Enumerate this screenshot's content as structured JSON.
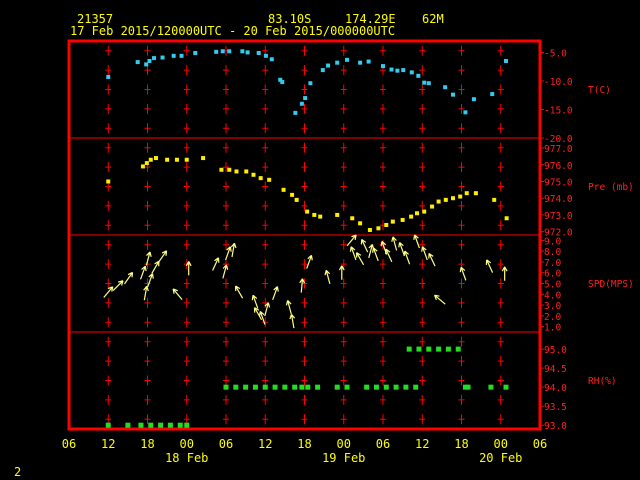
{
  "header": {
    "station": "21357",
    "latitude": "83.10S",
    "longitude": "174.29E",
    "elevation": "62M",
    "period": "17 Feb 2015/120000UTC - 20 Feb 2015/000000UTC"
  },
  "footer": {
    "page_number": "2"
  },
  "colors": {
    "frame": "#ff0000",
    "axis_text": "#ffff00",
    "panel_text": "#ff2020",
    "temp": "#33ccee",
    "pres": "#ffee00",
    "wind": "#ffff88",
    "rh": "#22dd22",
    "header_text": "#ffff00"
  },
  "chart_data": {
    "type": "scatter",
    "x_axis": {
      "unit": "hours from 17 Feb 06 UTC",
      "range": [
        0,
        72
      ],
      "tick_labels": [
        "06",
        "12",
        "18",
        "00",
        "06",
        "12",
        "18",
        "00",
        "06",
        "12",
        "18",
        "00",
        "06"
      ],
      "date_labels": [
        {
          "label": "18 Feb",
          "at": 18
        },
        {
          "label": "19 Feb",
          "at": 42
        },
        {
          "label": "20 Feb",
          "at": 66
        }
      ],
      "grid_hours": [
        6,
        12,
        18,
        24,
        30,
        36,
        42,
        48,
        54,
        60,
        66
      ]
    },
    "panels": [
      {
        "name": "temperature",
        "label": "T(C)",
        "ylim": [
          -20,
          -3
        ],
        "tick_labels": [
          "-5.0",
          "-10.0",
          "-15.0",
          "-20.0"
        ],
        "ticks": [
          -5,
          -10,
          -15,
          -20
        ],
        "series": [
          {
            "x": 6.0,
            "y": -9.3
          },
          {
            "x": 10.5,
            "y": -6.7
          },
          {
            "x": 11.8,
            "y": -7.1
          },
          {
            "x": 12.3,
            "y": -6.5
          },
          {
            "x": 13.0,
            "y": -6.0
          },
          {
            "x": 14.3,
            "y": -5.9
          },
          {
            "x": 16.0,
            "y": -5.6
          },
          {
            "x": 17.2,
            "y": -5.6
          },
          {
            "x": 19.3,
            "y": -5.1
          },
          {
            "x": 22.5,
            "y": -4.9
          },
          {
            "x": 23.5,
            "y": -4.8
          },
          {
            "x": 24.5,
            "y": -4.8
          },
          {
            "x": 26.5,
            "y": -4.8
          },
          {
            "x": 27.3,
            "y": -5.0
          },
          {
            "x": 29.0,
            "y": -5.1
          },
          {
            "x": 30.1,
            "y": -5.6
          },
          {
            "x": 31.0,
            "y": -6.2
          },
          {
            "x": 32.3,
            "y": -9.8
          },
          {
            "x": 32.6,
            "y": -10.2
          },
          {
            "x": 34.6,
            "y": -15.6
          },
          {
            "x": 35.6,
            "y": -14.0
          },
          {
            "x": 36.1,
            "y": -13.0
          },
          {
            "x": 36.9,
            "y": -10.4
          },
          {
            "x": 38.8,
            "y": -8.1
          },
          {
            "x": 39.6,
            "y": -7.3
          },
          {
            "x": 41.0,
            "y": -6.8
          },
          {
            "x": 42.5,
            "y": -6.3
          },
          {
            "x": 44.5,
            "y": -6.8
          },
          {
            "x": 45.8,
            "y": -6.6
          },
          {
            "x": 48.0,
            "y": -7.4
          },
          {
            "x": 49.3,
            "y": -8.0
          },
          {
            "x": 50.2,
            "y": -8.2
          },
          {
            "x": 51.1,
            "y": -8.1
          },
          {
            "x": 52.4,
            "y": -8.5
          },
          {
            "x": 53.4,
            "y": -9.1
          },
          {
            "x": 54.3,
            "y": -10.3
          },
          {
            "x": 55.0,
            "y": -10.4
          },
          {
            "x": 57.5,
            "y": -11.1
          },
          {
            "x": 58.7,
            "y": -12.4
          },
          {
            "x": 60.6,
            "y": -15.5
          },
          {
            "x": 61.9,
            "y": -13.2
          },
          {
            "x": 64.7,
            "y": -12.3
          },
          {
            "x": 66.8,
            "y": -6.5
          }
        ]
      },
      {
        "name": "pressure",
        "label": "Pre (mb)",
        "ylim": [
          971.8,
          977.6
        ],
        "tick_labels": [
          "977.0",
          "976.0",
          "975.0",
          "974.0",
          "973.0",
          "972.0"
        ],
        "ticks": [
          977,
          976,
          975,
          974,
          973,
          972
        ],
        "series": [
          {
            "x": 6.0,
            "y": 975.0
          },
          {
            "x": 11.3,
            "y": 975.9
          },
          {
            "x": 11.9,
            "y": 976.1
          },
          {
            "x": 12.5,
            "y": 976.3
          },
          {
            "x": 13.3,
            "y": 976.4
          },
          {
            "x": 15.0,
            "y": 976.3
          },
          {
            "x": 16.5,
            "y": 976.3
          },
          {
            "x": 18.0,
            "y": 976.3
          },
          {
            "x": 20.5,
            "y": 976.4
          },
          {
            "x": 23.3,
            "y": 975.7
          },
          {
            "x": 24.5,
            "y": 975.7
          },
          {
            "x": 25.6,
            "y": 975.6
          },
          {
            "x": 27.1,
            "y": 975.6
          },
          {
            "x": 28.2,
            "y": 975.4
          },
          {
            "x": 29.3,
            "y": 975.2
          },
          {
            "x": 30.6,
            "y": 975.1
          },
          {
            "x": 32.8,
            "y": 974.5
          },
          {
            "x": 34.1,
            "y": 974.2
          },
          {
            "x": 34.8,
            "y": 973.9
          },
          {
            "x": 36.4,
            "y": 973.2
          },
          {
            "x": 37.5,
            "y": 973.0
          },
          {
            "x": 38.4,
            "y": 972.9
          },
          {
            "x": 41.0,
            "y": 973.0
          },
          {
            "x": 43.3,
            "y": 972.8
          },
          {
            "x": 44.5,
            "y": 972.5
          },
          {
            "x": 46.0,
            "y": 972.1
          },
          {
            "x": 47.3,
            "y": 972.2
          },
          {
            "x": 48.5,
            "y": 972.4
          },
          {
            "x": 49.5,
            "y": 972.6
          },
          {
            "x": 51.0,
            "y": 972.7
          },
          {
            "x": 52.3,
            "y": 972.9
          },
          {
            "x": 53.2,
            "y": 973.1
          },
          {
            "x": 54.3,
            "y": 973.2
          },
          {
            "x": 55.5,
            "y": 973.5
          },
          {
            "x": 56.5,
            "y": 973.8
          },
          {
            "x": 57.6,
            "y": 973.9
          },
          {
            "x": 58.7,
            "y": 974.0
          },
          {
            "x": 59.8,
            "y": 974.1
          },
          {
            "x": 60.8,
            "y": 974.3
          },
          {
            "x": 62.2,
            "y": 974.3
          },
          {
            "x": 65.0,
            "y": 973.9
          },
          {
            "x": 66.9,
            "y": 972.8
          }
        ]
      },
      {
        "name": "wind",
        "label": "SPD(MPS)",
        "ylim": [
          0.5,
          9.5
        ],
        "tick_labels": [
          "9.0",
          "8.0",
          "7.0",
          "6.0",
          "5.0",
          "4.0",
          "3.0",
          "2.0",
          "1.0"
        ],
        "ticks": [
          9,
          8,
          7,
          6,
          5,
          4,
          3,
          2,
          1
        ],
        "series": [
          {
            "x": 6.0,
            "y": 4.2,
            "dir": 40
          },
          {
            "x": 7.5,
            "y": 4.8,
            "dir": 45
          },
          {
            "x": 9.1,
            "y": 5.5,
            "dir": 35
          },
          {
            "x": 11.3,
            "y": 6.0,
            "dir": 20
          },
          {
            "x": 12.1,
            "y": 7.3,
            "dir": 15
          },
          {
            "x": 11.7,
            "y": 4.1,
            "dir": 10
          },
          {
            "x": 12.4,
            "y": 5.3,
            "dir": 20
          },
          {
            "x": 13.2,
            "y": 6.5,
            "dir": 30
          },
          {
            "x": 14.3,
            "y": 7.5,
            "dir": 35
          },
          {
            "x": 16.6,
            "y": 4.0,
            "dir": -40
          },
          {
            "x": 18.3,
            "y": 6.4,
            "dir": 0
          },
          {
            "x": 22.4,
            "y": 6.8,
            "dir": 25
          },
          {
            "x": 23.8,
            "y": 6.1,
            "dir": 15
          },
          {
            "x": 24.3,
            "y": 7.8,
            "dir": 20
          },
          {
            "x": 25.1,
            "y": 8.1,
            "dir": 10
          },
          {
            "x": 26.0,
            "y": 4.2,
            "dir": -30
          },
          {
            "x": 28.5,
            "y": 3.3,
            "dir": -20
          },
          {
            "x": 28.9,
            "y": 2.2,
            "dir": -30
          },
          {
            "x": 29.6,
            "y": 1.8,
            "dir": -20
          },
          {
            "x": 30.2,
            "y": 2.6,
            "dir": 15
          },
          {
            "x": 31.5,
            "y": 4.1,
            "dir": 20
          },
          {
            "x": 33.7,
            "y": 2.8,
            "dir": -15
          },
          {
            "x": 34.2,
            "y": 1.5,
            "dir": -10
          },
          {
            "x": 35.6,
            "y": 4.8,
            "dir": 5
          },
          {
            "x": 36.7,
            "y": 7.0,
            "dir": 20
          },
          {
            "x": 39.6,
            "y": 5.6,
            "dir": -15
          },
          {
            "x": 41.7,
            "y": 6.0,
            "dir": 0
          },
          {
            "x": 43.2,
            "y": 9.0,
            "dir": 40
          },
          {
            "x": 43.5,
            "y": 7.8,
            "dir": -20
          },
          {
            "x": 44.5,
            "y": 7.3,
            "dir": -30
          },
          {
            "x": 45.2,
            "y": 8.5,
            "dir": -25
          },
          {
            "x": 46.1,
            "y": 8.0,
            "dir": 15
          },
          {
            "x": 46.9,
            "y": 7.7,
            "dir": -20
          },
          {
            "x": 48.2,
            "y": 8.3,
            "dir": -20
          },
          {
            "x": 48.9,
            "y": 7.6,
            "dir": -25
          },
          {
            "x": 49.8,
            "y": 8.7,
            "dir": -15
          },
          {
            "x": 50.9,
            "y": 8.2,
            "dir": -20
          },
          {
            "x": 51.7,
            "y": 7.4,
            "dir": -20
          },
          {
            "x": 53.2,
            "y": 8.9,
            "dir": -20
          },
          {
            "x": 54.4,
            "y": 7.8,
            "dir": -20
          },
          {
            "x": 55.5,
            "y": 7.2,
            "dir": -25
          },
          {
            "x": 56.7,
            "y": 3.5,
            "dir": -50
          },
          {
            "x": 60.3,
            "y": 5.9,
            "dir": -20
          },
          {
            "x": 64.3,
            "y": 6.6,
            "dir": -25
          },
          {
            "x": 66.6,
            "y": 5.9,
            "dir": 0
          }
        ]
      },
      {
        "name": "rh",
        "label": "RH(%)",
        "ylim": [
          92.9,
          95.45
        ],
        "tick_labels": [
          "95.0",
          "94.5",
          "94.0",
          "93.5",
          "93.0"
        ],
        "ticks": [
          95.0,
          94.5,
          94.0,
          93.5,
          93.0
        ],
        "series": [
          {
            "x": 6.0,
            "y": 93.0
          },
          {
            "x": 9.0,
            "y": 93.0
          },
          {
            "x": 11.0,
            "y": 93.0
          },
          {
            "x": 12.5,
            "y": 93.0
          },
          {
            "x": 14.0,
            "y": 93.0
          },
          {
            "x": 15.5,
            "y": 93.0
          },
          {
            "x": 17.0,
            "y": 93.0
          },
          {
            "x": 18.0,
            "y": 93.0
          },
          {
            "x": 24.0,
            "y": 94.0
          },
          {
            "x": 25.5,
            "y": 94.0
          },
          {
            "x": 27.0,
            "y": 94.0
          },
          {
            "x": 28.5,
            "y": 94.0
          },
          {
            "x": 30.0,
            "y": 94.0
          },
          {
            "x": 31.5,
            "y": 94.0
          },
          {
            "x": 33.0,
            "y": 94.0
          },
          {
            "x": 34.5,
            "y": 94.0
          },
          {
            "x": 35.6,
            "y": 94.0
          },
          {
            "x": 36.5,
            "y": 94.0
          },
          {
            "x": 38.0,
            "y": 94.0
          },
          {
            "x": 41.0,
            "y": 94.0
          },
          {
            "x": 42.5,
            "y": 94.0
          },
          {
            "x": 45.5,
            "y": 94.0
          },
          {
            "x": 47.0,
            "y": 94.0
          },
          {
            "x": 48.5,
            "y": 94.0
          },
          {
            "x": 50.0,
            "y": 94.0
          },
          {
            "x": 51.5,
            "y": 94.0
          },
          {
            "x": 53.0,
            "y": 94.0
          },
          {
            "x": 52.0,
            "y": 95.0
          },
          {
            "x": 53.5,
            "y": 95.0
          },
          {
            "x": 55.0,
            "y": 95.0
          },
          {
            "x": 56.5,
            "y": 95.0
          },
          {
            "x": 58.0,
            "y": 95.0
          },
          {
            "x": 59.5,
            "y": 95.0
          },
          {
            "x": 60.6,
            "y": 94.0
          },
          {
            "x": 61.0,
            "y": 94.0
          },
          {
            "x": 64.5,
            "y": 94.0
          },
          {
            "x": 66.8,
            "y": 94.0
          }
        ]
      }
    ]
  }
}
